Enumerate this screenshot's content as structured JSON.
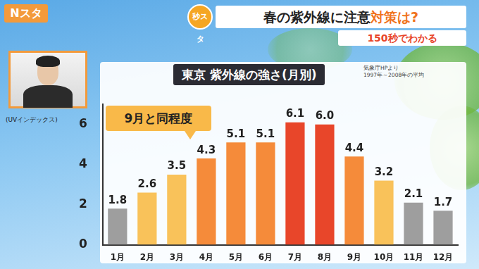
{
  "header": {
    "program": "Nスタ",
    "logo": "秒スタ",
    "headline": [
      "春の紫外線に注意",
      "対策は?"
    ],
    "subtitle": "150秒でわかる"
  },
  "chart_data": {
    "type": "bar",
    "title": "東京 紫外線の強さ(月別)",
    "source": [
      "気象庁HPより",
      "1997年～2008年の平均"
    ],
    "y_label": "(UVインデックス)",
    "annotations": [
      "9月と同程度"
    ],
    "categories": [
      "1月",
      "2月",
      "3月",
      "4月",
      "5月",
      "6月",
      "7月",
      "8月",
      "9月",
      "10月",
      "11月",
      "12月"
    ],
    "values": [
      1.8,
      2.6,
      3.5,
      4.3,
      5.1,
      5.1,
      6.1,
      6.0,
      4.4,
      3.2,
      2.1,
      1.7
    ],
    "value_labels": [
      "1.8",
      "2.6",
      "3.5",
      "4.3",
      "5.1",
      "5.1",
      "6.1",
      "6.0",
      "4.4",
      "3.2",
      "2.1",
      "1.7"
    ],
    "colors": [
      "#9e9e9e",
      "#f9c25a",
      "#f9c25a",
      "#f58b3a",
      "#f58b3a",
      "#f58b3a",
      "#e8462a",
      "#e8462a",
      "#f58b3a",
      "#f9c25a",
      "#9e9e9e",
      "#9e9e9e"
    ],
    "data_labels": true,
    "ylim": [
      0,
      7
    ],
    "yticks": [
      0,
      2,
      4,
      6
    ],
    "grid": false
  }
}
